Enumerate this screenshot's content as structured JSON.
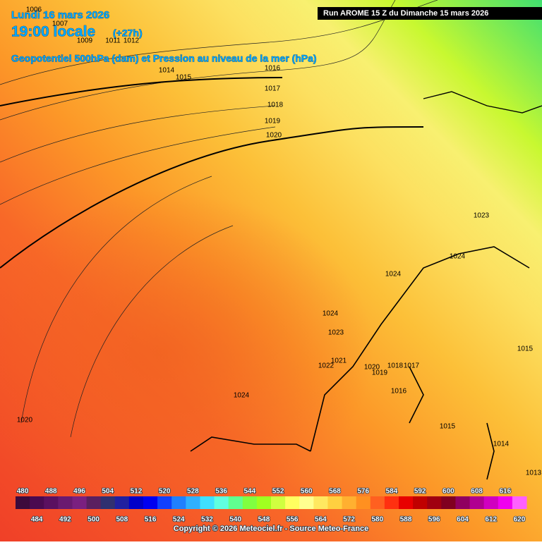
{
  "header": {
    "date": "Lundi 16 mars 2026",
    "time": "19:00 locale",
    "lead": "(+27h)",
    "field": "Geopotentiel 500hPa (dam) et Pression au niveau de la mer (hPa)",
    "run": "Run AROME 15 Z du Dimanche 15 mars 2026"
  },
  "isobar_labels": [
    "1006",
    "1007",
    "1009",
    "1011",
    "1012",
    "1014",
    "1015",
    "1016",
    "1017",
    "1018",
    "1019",
    "1020",
    "1023",
    "1024",
    "1024",
    "1024",
    "1023",
    "1021",
    "1022",
    "1020",
    "1019",
    "1018",
    "1017",
    "1016",
    "1015",
    "1014",
    "1015",
    "1024",
    "1020",
    "1013"
  ],
  "legend": {
    "items": [
      {
        "label": "480",
        "color": "#3c0a3c"
      },
      {
        "label": "484",
        "color": "#4a0a50"
      },
      {
        "label": "488",
        "color": "#5a1060"
      },
      {
        "label": "492",
        "color": "#6a1a70"
      },
      {
        "label": "496",
        "color": "#7a2080"
      },
      {
        "label": "500",
        "color": "#5a2060"
      },
      {
        "label": "504",
        "color": "#303070"
      },
      {
        "label": "508",
        "color": "#2020a0"
      },
      {
        "label": "512",
        "color": "#0000c8"
      },
      {
        "label": "516",
        "color": "#0000f0"
      },
      {
        "label": "520",
        "color": "#1040ff"
      },
      {
        "label": "524",
        "color": "#2080ff"
      },
      {
        "label": "528",
        "color": "#30b0ff"
      },
      {
        "label": "532",
        "color": "#40e0ff"
      },
      {
        "label": "536",
        "color": "#60ffe0"
      },
      {
        "label": "540",
        "color": "#60ff90"
      },
      {
        "label": "544",
        "color": "#80ff40"
      },
      {
        "label": "548",
        "color": "#a0ff20"
      },
      {
        "label": "552",
        "color": "#d0ff40"
      },
      {
        "label": "556",
        "color": "#ffff60"
      },
      {
        "label": "560",
        "color": "#ffff90"
      },
      {
        "label": "564",
        "color": "#ffe860"
      },
      {
        "label": "568",
        "color": "#ffd040"
      },
      {
        "label": "572",
        "color": "#ffb030"
      },
      {
        "label": "576",
        "color": "#ff9020"
      },
      {
        "label": "580",
        "color": "#ff6020"
      },
      {
        "label": "584",
        "color": "#ff3010"
      },
      {
        "label": "588",
        "color": "#e80000"
      },
      {
        "label": "592",
        "color": "#c00000"
      },
      {
        "label": "596",
        "color": "#a00010"
      },
      {
        "label": "600",
        "color": "#800020"
      },
      {
        "label": "604",
        "color": "#900060"
      },
      {
        "label": "608",
        "color": "#b00090"
      },
      {
        "label": "612",
        "color": "#d000c0"
      },
      {
        "label": "616",
        "color": "#f000f0"
      },
      {
        "label": "620",
        "color": "#ff60ff"
      }
    ]
  },
  "footer": {
    "copyright": "Copyright © 2026 Meteociel.fr - Source Meteo-France"
  }
}
